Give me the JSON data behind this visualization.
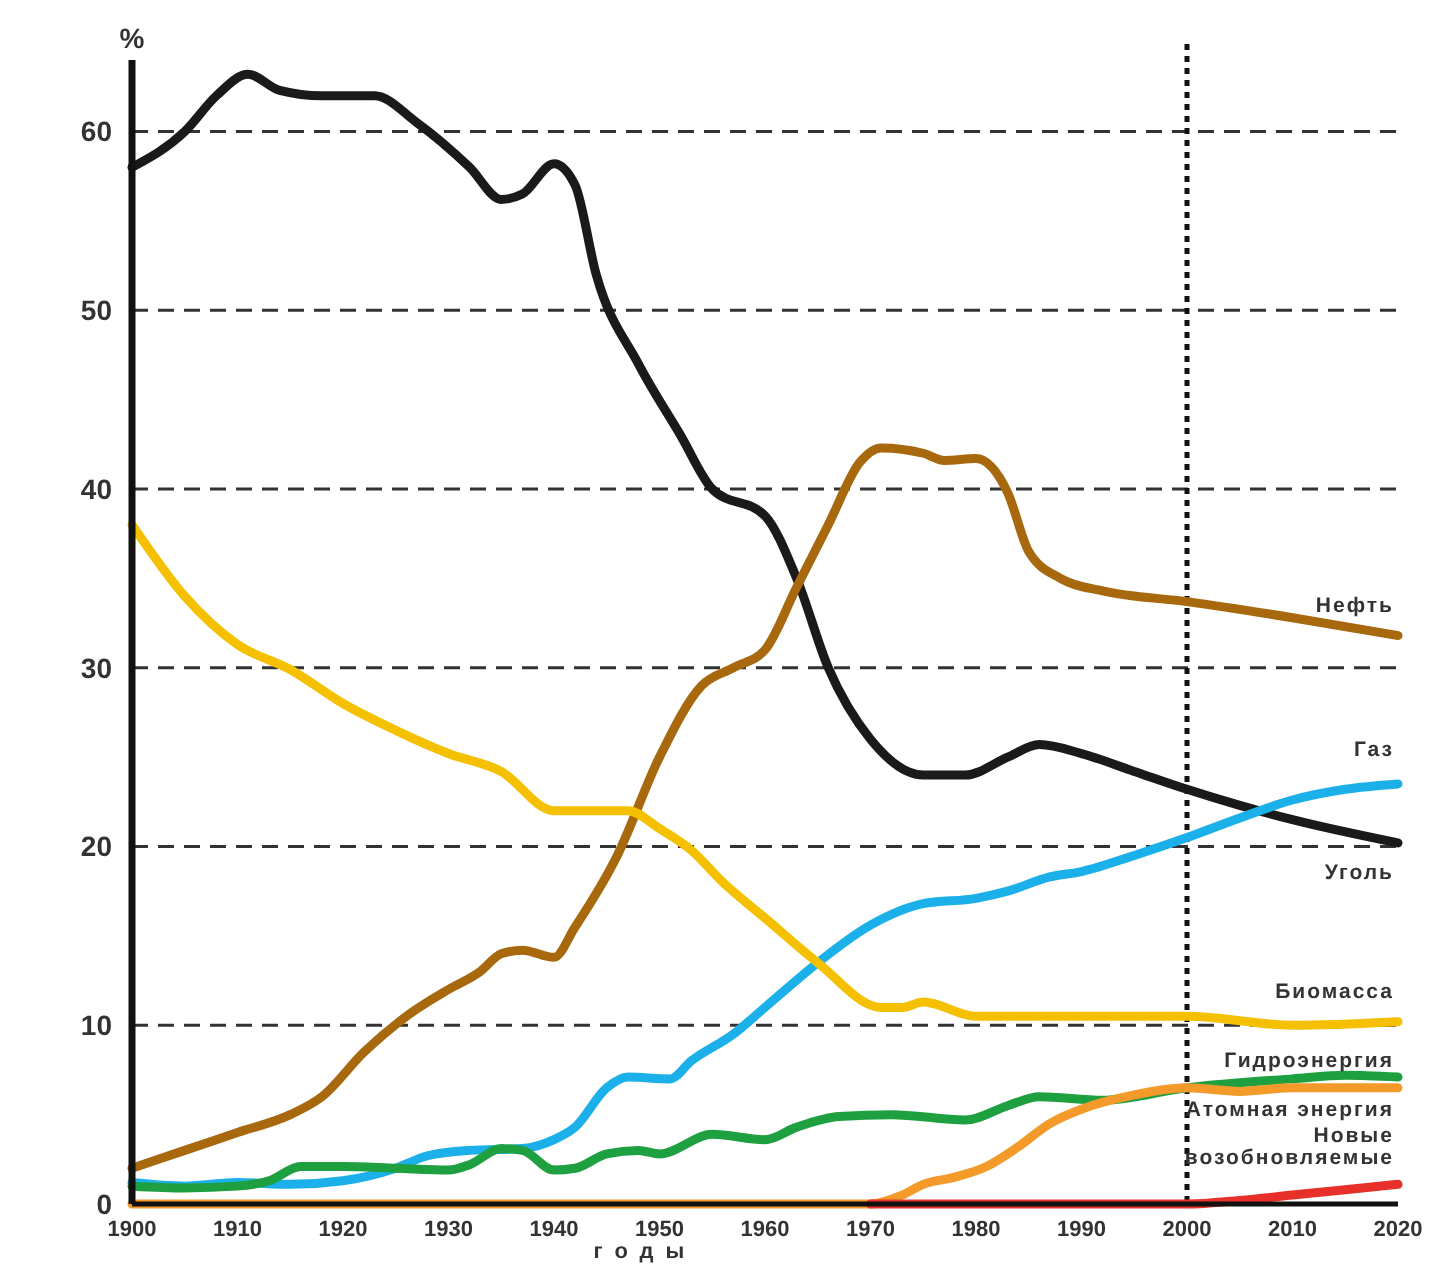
{
  "chart_data": {
    "type": "line",
    "ylabel": "%",
    "xlabel": "годы",
    "xlim": [
      1900,
      2020
    ],
    "xticks": [
      1900,
      1910,
      1920,
      1930,
      1940,
      1950,
      1960,
      1970,
      1980,
      1990,
      2000,
      2010,
      2020
    ],
    "ylim": [
      0,
      64
    ],
    "yticks": [
      0,
      10,
      20,
      30,
      40,
      50,
      60
    ],
    "grid": "y",
    "legend": false,
    "line_style": "solid",
    "marker": "none",
    "ref_lines": [
      {
        "axis": "x",
        "value": 2000,
        "line_style": "dotted",
        "color": "#111111"
      }
    ],
    "series": [
      {
        "name": "Уголь",
        "color": "#1a1a1a",
        "x": [
          1900,
          1905,
          1908,
          1911,
          1914,
          1918,
          1923,
          1927,
          1932,
          1935,
          1937,
          1940,
          1942,
          1944,
          1948,
          1952,
          1955,
          1960,
          1963,
          1966,
          1970,
          1975,
          1979,
          1983,
          1986,
          1990,
          1995,
          2000,
          2005,
          2010,
          2020
        ],
        "values": [
          58,
          60,
          62,
          63.2,
          62.3,
          62,
          62,
          60.5,
          58,
          56.2,
          56.5,
          58.2,
          57,
          52,
          47,
          43,
          40,
          38.5,
          35,
          30,
          26,
          24,
          24,
          25,
          25.7,
          25.2,
          24.2,
          23.2,
          22.3,
          21.5,
          20.2
        ]
      },
      {
        "name": "Нефть",
        "color": "#a8690e",
        "x": [
          1900,
          1905,
          1910,
          1915,
          1918,
          1922,
          1926,
          1930,
          1933,
          1935,
          1937,
          1940,
          1942,
          1946,
          1950,
          1954,
          1957,
          1960,
          1963,
          1966,
          1969,
          1971,
          1975,
          1977,
          1980,
          1983,
          1985,
          1988,
          1992,
          2000,
          2010,
          2020
        ],
        "values": [
          2,
          3,
          4,
          5,
          6,
          8.5,
          10.5,
          12,
          13,
          14,
          14.2,
          13.8,
          15.5,
          19.5,
          25,
          29,
          30,
          31,
          34.5,
          38,
          41.5,
          42.3,
          42,
          41.6,
          41.7,
          39.8,
          36.5,
          35,
          34.3,
          33.7,
          32.8,
          31.8
        ]
      },
      {
        "name": "Газ",
        "color": "#1cb0ea",
        "x": [
          1900,
          1905,
          1910,
          1915,
          1920,
          1925,
          1928,
          1932,
          1937,
          1940,
          1942,
          1945,
          1947,
          1951,
          1953,
          1957,
          1960,
          1965,
          1970,
          1975,
          1980,
          1983,
          1987,
          1990,
          1995,
          2000,
          2005,
          2010,
          2015,
          2020
        ],
        "values": [
          1.2,
          1,
          1.2,
          1.1,
          1.3,
          2,
          2.7,
          3,
          3.1,
          3.6,
          4.3,
          6.5,
          7.1,
          7,
          8,
          9.5,
          11,
          13.5,
          15.6,
          16.8,
          17.1,
          17.5,
          18.3,
          18.6,
          19.5,
          20.5,
          21.6,
          22.6,
          23.2,
          23.5
        ]
      },
      {
        "name": "Биомасса",
        "color": "#f5c000",
        "x": [
          1900,
          1905,
          1910,
          1915,
          1920,
          1925,
          1930,
          1935,
          1940,
          1944,
          1947,
          1950,
          1953,
          1956,
          1960,
          1965,
          1971,
          1973,
          1975,
          1980,
          1990,
          2000,
          2010,
          2020
        ],
        "values": [
          38,
          34,
          31.3,
          29.9,
          28,
          26.5,
          25.2,
          24.2,
          22,
          22,
          22,
          21,
          19.8,
          18,
          16,
          13.5,
          11,
          11,
          11.3,
          10.5,
          10.5,
          10.5,
          10,
          10.2
        ]
      },
      {
        "name": "Гидроэнергия",
        "color": "#1fa040",
        "x": [
          1900,
          1905,
          1910,
          1913,
          1916,
          1920,
          1925,
          1930,
          1932,
          1935,
          1937,
          1940,
          1942,
          1945,
          1948,
          1950,
          1955,
          1960,
          1963,
          1967,
          1972,
          1979,
          1983,
          1986,
          1992,
          2000,
          2010,
          2015,
          2020
        ],
        "values": [
          1,
          0.9,
          1,
          1.3,
          2.1,
          2.1,
          2,
          1.9,
          2.2,
          3.1,
          3,
          1.9,
          2,
          2.8,
          3,
          2.8,
          3.9,
          3.6,
          4.3,
          4.9,
          5,
          4.7,
          5.5,
          6,
          5.8,
          6.5,
          7,
          7.2,
          7.1
        ]
      },
      {
        "name": "Атомная энергия",
        "color": "#f39a2a",
        "x": [
          1900,
          1970,
          1973,
          1975,
          1978,
          1981,
          1984,
          1987,
          1990,
          1995,
          2000,
          2005,
          2010,
          2020
        ],
        "values": [
          0,
          0,
          0.5,
          1.1,
          1.5,
          2.1,
          3.2,
          4.5,
          5.3,
          6.1,
          6.5,
          6.3,
          6.5,
          6.5
        ]
      },
      {
        "name": "Новые возобновляемые",
        "color": "#e8302a",
        "x": [
          1970,
          2000,
          2005,
          2010,
          2015,
          2020
        ],
        "values": [
          0,
          0,
          0.2,
          0.5,
          0.8,
          1.1
        ]
      }
    ]
  }
}
